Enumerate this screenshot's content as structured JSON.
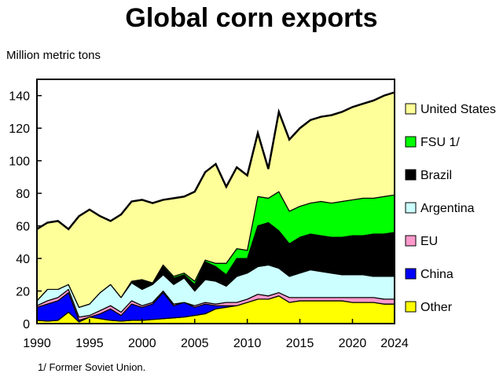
{
  "chart_data": {
    "type": "area",
    "stacked": true,
    "title": "Global corn exports",
    "ylabel": "Million metric tons",
    "xlabel": "",
    "footnote": "1/ Former Soviet Union.",
    "xlim": [
      1990,
      2024
    ],
    "ylim": [
      0,
      150
    ],
    "x_ticks": [
      1990,
      1995,
      2000,
      2005,
      2010,
      2015,
      2020,
      2024
    ],
    "y_ticks": [
      0,
      20,
      40,
      60,
      80,
      100,
      120,
      140
    ],
    "legend_position": "right",
    "x": [
      1990,
      1991,
      1992,
      1993,
      1994,
      1995,
      1996,
      1997,
      1998,
      1999,
      2000,
      2001,
      2002,
      2003,
      2004,
      2005,
      2006,
      2007,
      2008,
      2009,
      2010,
      2011,
      2012,
      2013,
      2014,
      2015,
      2016,
      2017,
      2018,
      2019,
      2020,
      2021,
      2022,
      2023,
      2024
    ],
    "series": [
      {
        "name": "Other",
        "color": "#ffff00",
        "values": [
          2,
          1.5,
          2,
          7,
          1,
          4,
          3,
          2,
          1.5,
          2,
          2,
          2.5,
          3,
          3.5,
          4,
          5,
          6,
          9,
          10,
          11,
          13,
          15,
          15,
          17,
          13,
          14,
          14,
          14,
          14,
          14,
          13,
          13,
          13,
          12,
          12
        ]
      },
      {
        "name": "China",
        "color": "#0000ff",
        "values": [
          8,
          10.5,
          12,
          12,
          1,
          0,
          3,
          7,
          3.5,
          10,
          8,
          9.5,
          16,
          7.5,
          9,
          5,
          6,
          2,
          1,
          0,
          0,
          0,
          0,
          0,
          0,
          0,
          0,
          0,
          0,
          0,
          0,
          0,
          0,
          0,
          0
        ]
      },
      {
        "name": "EU",
        "color": "#ff99cc",
        "values": [
          1,
          2,
          2,
          2,
          2,
          1,
          2,
          2,
          2,
          2,
          1,
          1,
          1,
          1,
          0,
          1,
          1,
          1,
          2,
          2,
          2,
          3,
          2,
          2,
          3,
          2,
          2,
          2,
          2,
          2,
          3,
          3,
          3,
          3,
          3
        ]
      },
      {
        "name": "Argentina",
        "color": "#ccffff",
        "values": [
          3,
          7,
          5,
          3,
          6,
          7,
          11,
          13,
          9,
          11,
          10,
          11,
          10,
          12,
          15,
          9,
          14,
          14,
          10,
          16,
          16,
          17,
          19,
          15,
          13,
          15,
          17,
          16,
          15,
          14,
          14,
          14,
          13,
          14,
          14
        ]
      },
      {
        "name": "Brazil",
        "color": "#000000",
        "values": [
          0,
          0,
          0,
          0,
          0,
          0,
          0,
          0,
          0,
          1,
          6,
          1,
          5,
          4,
          2,
          4,
          11,
          9,
          7,
          11,
          9,
          25,
          26,
          23,
          20,
          22,
          22,
          22,
          22,
          23,
          24,
          24,
          26,
          26,
          27
        ]
      },
      {
        "name": "FSU 1/",
        "color": "#00ff00",
        "values": [
          0,
          0,
          0,
          0,
          0,
          0,
          0,
          0,
          0,
          0,
          0,
          0,
          1,
          1,
          1,
          2,
          1,
          2,
          7,
          6,
          5,
          18,
          15,
          24,
          20,
          19,
          19,
          21,
          21,
          22,
          22,
          23,
          22,
          23,
          23
        ]
      },
      {
        "name": "United States",
        "color": "#ffff99",
        "values": [
          44,
          41,
          42,
          34,
          56,
          58,
          47,
          39,
          51,
          49,
          49,
          49,
          40,
          48,
          47,
          55,
          54,
          61,
          47,
          50,
          46,
          39,
          18,
          49,
          44,
          48,
          51,
          52,
          54,
          55,
          57,
          58,
          60,
          62,
          63
        ]
      }
    ]
  }
}
